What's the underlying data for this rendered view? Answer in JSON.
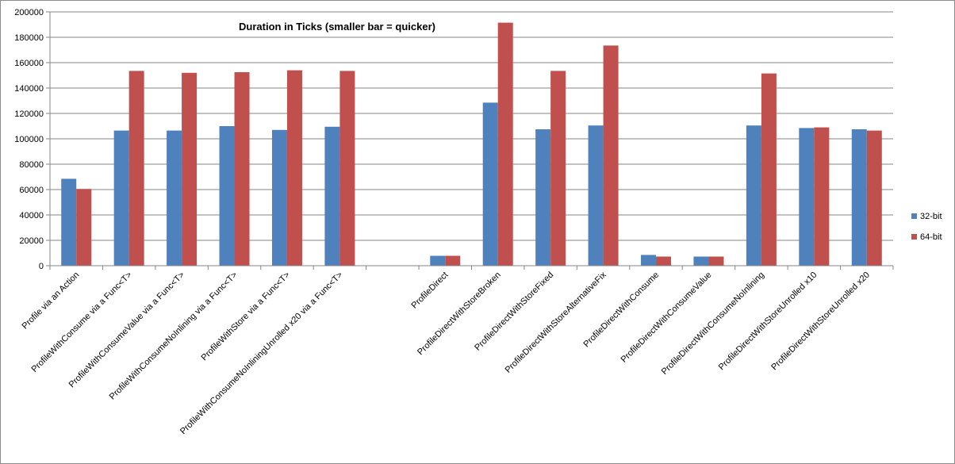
{
  "chart_data": {
    "type": "bar",
    "title": "Duration in Ticks (smaller bar = quicker)",
    "xlabel": "",
    "ylabel": "",
    "ylim": [
      0,
      200000
    ],
    "yticks": [
      0,
      20000,
      40000,
      60000,
      80000,
      100000,
      120000,
      140000,
      160000,
      180000,
      200000
    ],
    "grid": true,
    "legend_position": "right",
    "categories": [
      "Profile via an Action",
      "ProfileWithConsume via a Func<T>",
      "ProfileWithConsumeValue via a Func<T>",
      "ProfileWithConsumeNoInlining via a Func<T>",
      "ProfileWithStore via a Func<T>",
      "ProfileWithConsumeNoInliningUnrolled x20 via a Func<T>",
      "",
      "ProfileDirect",
      "ProfileDirectWithStoreBroken",
      "ProfileDirectWithStoreFixed",
      "ProfileDirectWithStoreAlternativeFix",
      "ProfileDirectWithConsume",
      "ProfileDirectWithConsumeValue",
      "ProfileDirectWithConsumeNoInlining",
      "ProfileDirectWithStoreUnrolled x10",
      "ProfileDirectWithStoreUnrolled x20"
    ],
    "series": [
      {
        "name": "32-bit",
        "color": "#4f81bd",
        "values": [
          68500,
          106500,
          106500,
          110000,
          107000,
          109500,
          null,
          7800,
          128500,
          107500,
          110500,
          8500,
          7200,
          110500,
          108500,
          107500
        ]
      },
      {
        "name": "64-bit",
        "color": "#c0504d",
        "values": [
          60500,
          153500,
          152000,
          152500,
          154000,
          153500,
          null,
          7800,
          191500,
          153500,
          173500,
          7200,
          7200,
          151500,
          109000,
          106500
        ]
      }
    ]
  }
}
